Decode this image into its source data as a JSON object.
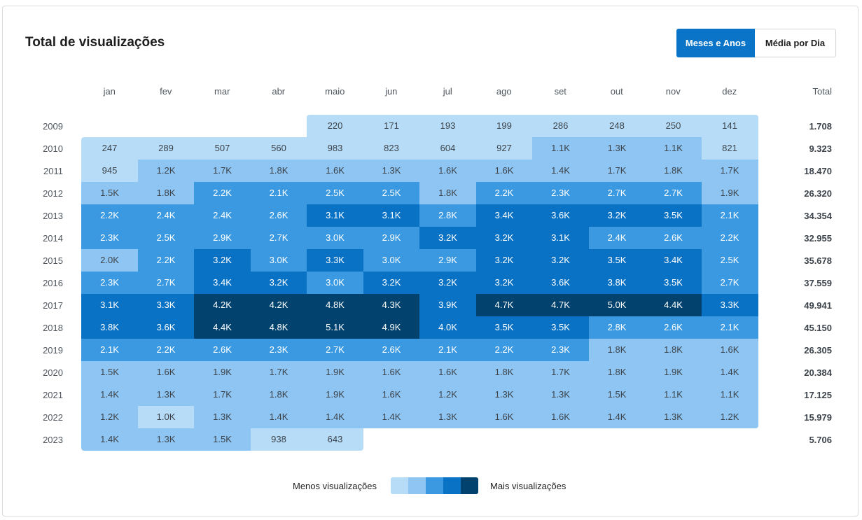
{
  "title": "Total de visualizações",
  "toggle": {
    "option_a": "Meses e Anos",
    "option_b": "Média por Dia"
  },
  "legend": {
    "less": "Menos visualizações",
    "more": "Mais visualizações",
    "colors": [
      "#b7dcf8",
      "#8ec5f2",
      "#3a99e0",
      "#0a72c4",
      "#01426e"
    ]
  },
  "chart_data": {
    "type": "heatmap",
    "months": [
      "jan",
      "fev",
      "mar",
      "abr",
      "maio",
      "jun",
      "jul",
      "ago",
      "set",
      "out",
      "nov",
      "dez"
    ],
    "total_label": "Total",
    "rows": [
      {
        "year": "2009",
        "cells": [
          "",
          "",
          "",
          "",
          "220",
          "171",
          "193",
          "199",
          "286",
          "248",
          "250",
          "141"
        ],
        "levels": [
          -1,
          -1,
          -1,
          -1,
          0,
          0,
          0,
          0,
          0,
          0,
          0,
          0
        ],
        "total": "1.708"
      },
      {
        "year": "2010",
        "cells": [
          "247",
          "289",
          "507",
          "560",
          "983",
          "823",
          "604",
          "927",
          "1.1K",
          "1.3K",
          "1.1K",
          "821"
        ],
        "levels": [
          0,
          0,
          0,
          0,
          0,
          0,
          0,
          0,
          1,
          1,
          1,
          0
        ],
        "total": "9.323"
      },
      {
        "year": "2011",
        "cells": [
          "945",
          "1.2K",
          "1.7K",
          "1.8K",
          "1.6K",
          "1.3K",
          "1.6K",
          "1.6K",
          "1.4K",
          "1.7K",
          "1.8K",
          "1.7K"
        ],
        "levels": [
          0,
          1,
          1,
          1,
          1,
          1,
          1,
          1,
          1,
          1,
          1,
          1
        ],
        "total": "18.470"
      },
      {
        "year": "2012",
        "cells": [
          "1.5K",
          "1.8K",
          "2.2K",
          "2.1K",
          "2.5K",
          "2.5K",
          "1.8K",
          "2.2K",
          "2.3K",
          "2.7K",
          "2.7K",
          "1.9K"
        ],
        "levels": [
          1,
          1,
          2,
          2,
          2,
          2,
          1,
          2,
          2,
          2,
          2,
          1
        ],
        "total": "26.320"
      },
      {
        "year": "2013",
        "cells": [
          "2.2K",
          "2.4K",
          "2.4K",
          "2.6K",
          "3.1K",
          "3.1K",
          "2.8K",
          "3.4K",
          "3.6K",
          "3.2K",
          "3.5K",
          "2.1K"
        ],
        "levels": [
          2,
          2,
          2,
          2,
          3,
          3,
          2,
          3,
          3,
          3,
          3,
          2
        ],
        "total": "34.354"
      },
      {
        "year": "2014",
        "cells": [
          "2.3K",
          "2.5K",
          "2.9K",
          "2.7K",
          "3.0K",
          "2.9K",
          "3.2K",
          "3.2K",
          "3.1K",
          "2.4K",
          "2.6K",
          "2.2K"
        ],
        "levels": [
          2,
          2,
          2,
          2,
          2,
          2,
          3,
          3,
          3,
          2,
          2,
          2
        ],
        "total": "32.955"
      },
      {
        "year": "2015",
        "cells": [
          "2.0K",
          "2.2K",
          "3.2K",
          "3.0K",
          "3.3K",
          "3.0K",
          "2.9K",
          "3.2K",
          "3.2K",
          "3.5K",
          "3.4K",
          "2.5K"
        ],
        "levels": [
          1,
          2,
          3,
          2,
          3,
          2,
          2,
          3,
          3,
          3,
          3,
          2
        ],
        "total": "35.678"
      },
      {
        "year": "2016",
        "cells": [
          "2.3K",
          "2.7K",
          "3.4K",
          "3.2K",
          "3.0K",
          "3.2K",
          "3.2K",
          "3.2K",
          "3.6K",
          "3.8K",
          "3.5K",
          "2.7K"
        ],
        "levels": [
          2,
          2,
          3,
          3,
          2,
          3,
          3,
          3,
          3,
          3,
          3,
          2
        ],
        "total": "37.559"
      },
      {
        "year": "2017",
        "cells": [
          "3.1K",
          "3.3K",
          "4.2K",
          "4.2K",
          "4.8K",
          "4.3K",
          "3.9K",
          "4.7K",
          "4.7K",
          "5.0K",
          "4.4K",
          "3.3K"
        ],
        "levels": [
          3,
          3,
          4,
          4,
          4,
          4,
          3,
          4,
          4,
          4,
          4,
          3
        ],
        "total": "49.941"
      },
      {
        "year": "2018",
        "cells": [
          "3.8K",
          "3.6K",
          "4.4K",
          "4.8K",
          "5.1K",
          "4.9K",
          "4.0K",
          "3.5K",
          "3.5K",
          "2.8K",
          "2.6K",
          "2.1K"
        ],
        "levels": [
          3,
          3,
          4,
          4,
          4,
          4,
          3,
          3,
          3,
          2,
          2,
          2
        ],
        "total": "45.150"
      },
      {
        "year": "2019",
        "cells": [
          "2.1K",
          "2.2K",
          "2.6K",
          "2.3K",
          "2.7K",
          "2.6K",
          "2.1K",
          "2.2K",
          "2.3K",
          "1.8K",
          "1.8K",
          "1.6K"
        ],
        "levels": [
          2,
          2,
          2,
          2,
          2,
          2,
          2,
          2,
          2,
          1,
          1,
          1
        ],
        "total": "26.305"
      },
      {
        "year": "2020",
        "cells": [
          "1.5K",
          "1.6K",
          "1.9K",
          "1.7K",
          "1.9K",
          "1.6K",
          "1.6K",
          "1.8K",
          "1.7K",
          "1.8K",
          "1.9K",
          "1.4K"
        ],
        "levels": [
          1,
          1,
          1,
          1,
          1,
          1,
          1,
          1,
          1,
          1,
          1,
          1
        ],
        "total": "20.384"
      },
      {
        "year": "2021",
        "cells": [
          "1.4K",
          "1.3K",
          "1.7K",
          "1.8K",
          "1.9K",
          "1.6K",
          "1.2K",
          "1.3K",
          "1.3K",
          "1.5K",
          "1.1K",
          "1.1K"
        ],
        "levels": [
          1,
          1,
          1,
          1,
          1,
          1,
          1,
          1,
          1,
          1,
          1,
          1
        ],
        "total": "17.125"
      },
      {
        "year": "2022",
        "cells": [
          "1.2K",
          "1.0K",
          "1.3K",
          "1.4K",
          "1.4K",
          "1.4K",
          "1.3K",
          "1.6K",
          "1.6K",
          "1.4K",
          "1.3K",
          "1.2K"
        ],
        "levels": [
          1,
          0,
          1,
          1,
          1,
          1,
          1,
          1,
          1,
          1,
          1,
          1
        ],
        "total": "15.979"
      },
      {
        "year": "2023",
        "cells": [
          "1.4K",
          "1.3K",
          "1.5K",
          "938",
          "643",
          "",
          "",
          "",
          "",
          "",
          "",
          ""
        ],
        "levels": [
          1,
          1,
          1,
          0,
          0,
          -1,
          -1,
          -1,
          -1,
          -1,
          -1,
          -1
        ],
        "total": "5.706"
      }
    ]
  }
}
